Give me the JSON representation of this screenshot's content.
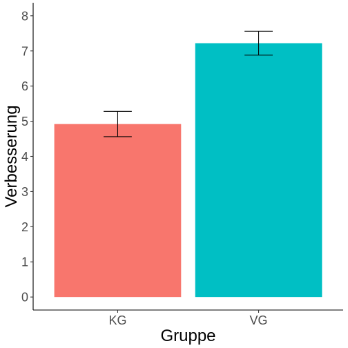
{
  "chart_data": {
    "type": "bar",
    "categories": [
      "KG",
      "VG"
    ],
    "values": [
      4.92,
      7.22
    ],
    "error_low": [
      4.56,
      6.88
    ],
    "error_high": [
      5.28,
      7.56
    ],
    "colors": [
      "#F8766D",
      "#00BFC4"
    ],
    "xlabel": "Gruppe",
    "ylabel": "Verbesserung",
    "ylim": [
      -0.37,
      8.37
    ],
    "yticks": [
      "0",
      "1",
      "2",
      "3",
      "4",
      "5",
      "6",
      "7",
      "8"
    ],
    "grid": false,
    "legend": "none"
  }
}
